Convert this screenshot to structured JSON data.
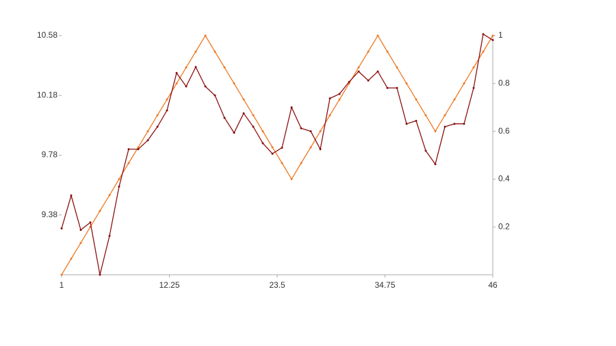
{
  "chart_data": {
    "type": "line",
    "x": [
      1,
      2,
      3,
      4,
      5,
      6,
      7,
      8,
      9,
      10,
      11,
      12,
      13,
      14,
      15,
      16,
      17,
      18,
      19,
      20,
      21,
      22,
      23,
      24,
      25,
      26,
      27,
      28,
      29,
      30,
      31,
      32,
      33,
      34,
      35,
      36,
      37,
      38,
      39,
      40,
      41,
      42,
      43,
      44,
      45,
      46
    ],
    "series": [
      {
        "color": "#8b1010",
        "values": [
          9.29,
          9.51,
          9.28,
          9.33,
          8.98,
          9.24,
          9.57,
          9.82,
          9.82,
          9.88,
          9.97,
          10.08,
          10.33,
          10.24,
          10.37,
          10.24,
          10.18,
          10.03,
          9.93,
          10.06,
          9.97,
          9.86,
          9.79,
          9.83,
          10.1,
          9.96,
          9.94,
          9.82,
          10.16,
          10.19,
          10.27,
          10.34,
          10.28,
          10.34,
          10.23,
          10.23,
          9.99,
          10.01,
          9.81,
          9.72,
          9.97,
          9.99,
          9.99,
          10.23,
          10.59,
          10.55
        ]
      },
      {
        "color": "#ee7722",
        "axis": "y2",
        "values": [
          0,
          0.067,
          0.133,
          0.2,
          0.267,
          0.333,
          0.4,
          0.467,
          0.533,
          0.6,
          0.667,
          0.733,
          0.8,
          0.867,
          0.933,
          1,
          0.933,
          0.867,
          0.8,
          0.733,
          0.667,
          0.6,
          0.533,
          0.467,
          0.4,
          0.467,
          0.533,
          0.6,
          0.667,
          0.733,
          0.8,
          0.867,
          0.933,
          1,
          0.933,
          0.867,
          0.8,
          0.733,
          0.667,
          0.6,
          0.667,
          0.733,
          0.8,
          0.867,
          0.933,
          1
        ]
      }
    ],
    "xlim": [
      1,
      46
    ],
    "xticks": [
      1,
      12.25,
      23.5,
      34.75,
      46
    ],
    "ylim": [
      8.98,
      10.58
    ],
    "yticks": [
      9.38,
      9.78,
      10.18,
      10.58
    ],
    "y2lim": [
      0,
      1
    ],
    "y2ticks": [
      0.2,
      0.4,
      0.6,
      0.8,
      1
    ]
  }
}
